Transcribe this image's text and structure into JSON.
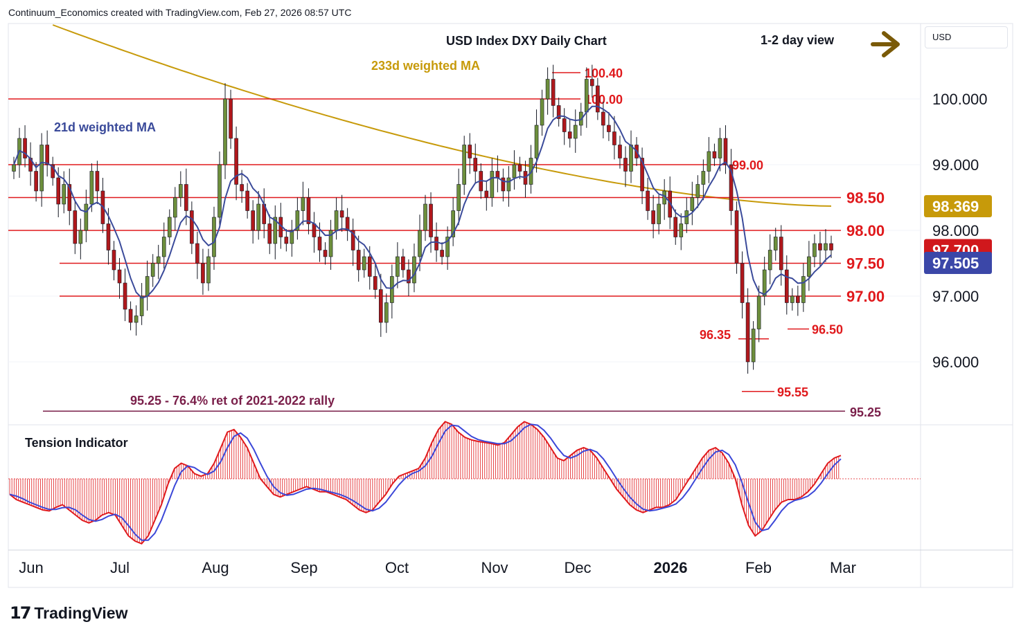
{
  "header": {
    "attribution": "Continuum_Economics created with TradingView.com, Feb 27, 2026 08:57 UTC"
  },
  "currency_selector": {
    "label": "USD"
  },
  "footer": {
    "brand_mark": "17",
    "brand_name": "TradingView"
  },
  "colors": {
    "level_line": "#e0191c",
    "ma21": "#3a4a9a",
    "ma233": "#c79a0a",
    "up_candle": "#6d8f3c",
    "down_candle": "#b0181c",
    "fib_line": "#7a1f4a",
    "arrow": "#7a5a08",
    "price_tag": "#d0181c",
    "ma21_tag": "#3b47a8",
    "ma233_tag": "#c79a0a"
  },
  "chart_data": {
    "type": "candlestick",
    "title": "USD Index DXY Daily Chart",
    "view_label": "1-2 day view",
    "view_icon": "arrow-right-icon",
    "ma21_label": "21d weighted MA",
    "ma233_label": "233d weighted MA",
    "x_tick_labels": [
      "Jun",
      "Jul",
      "Aug",
      "Sep",
      "Oct",
      "Nov",
      "Dec",
      "2026",
      "Feb",
      "Mar"
    ],
    "y_tick_labels": [
      "100.000",
      "99.000",
      "98.000",
      "97.000",
      "96.000"
    ],
    "y_ticks": [
      100,
      99,
      98,
      97,
      96
    ],
    "ylim": [
      95.1,
      101.1
    ],
    "price_tags": [
      {
        "label": "98.369",
        "value": 98.369,
        "kind": "ma233"
      },
      {
        "label": "97.700",
        "value": 97.7,
        "kind": "price"
      },
      {
        "label": "97.505",
        "value": 97.505,
        "kind": "ma21"
      }
    ],
    "levels": [
      {
        "value": 100.4,
        "label": "100.40",
        "side": "left"
      },
      {
        "value": 100.0,
        "label": "100.00",
        "side": "left"
      },
      {
        "value": 99.0,
        "label": "99.00",
        "side": "left"
      },
      {
        "value": 98.5,
        "label": "98.50",
        "side": "right"
      },
      {
        "value": 98.0,
        "label": "98.00",
        "side": "right"
      },
      {
        "value": 97.5,
        "label": "97.50",
        "side": "right"
      },
      {
        "value": 97.0,
        "label": "97.00",
        "side": "right"
      },
      {
        "value": 96.5,
        "label": "96.50",
        "side": "left"
      },
      {
        "value": 96.35,
        "label": "96.35",
        "side": "right"
      },
      {
        "value": 95.55,
        "label": "95.55",
        "side": "left"
      }
    ],
    "fib_label": "95.25 - 76.4% ret of 2021-2022 rally",
    "fib_value": 95.25,
    "fib_tag": "95.25",
    "ma21_value": 97.505,
    "ma233_value": 98.369,
    "last_close": 97.7,
    "series_note": "Daily OHLC Jun 2025 - Feb 27 2026",
    "closes": [
      99.0,
      99.4,
      99.1,
      98.9,
      98.6,
      99.3,
      99.0,
      98.8,
      98.4,
      98.7,
      98.3,
      97.8,
      98.0,
      98.4,
      98.9,
      98.6,
      98.1,
      97.7,
      97.4,
      97.2,
      96.8,
      96.6,
      96.7,
      97.0,
      97.3,
      97.5,
      97.6,
      97.9,
      98.2,
      98.5,
      98.7,
      98.3,
      97.8,
      97.5,
      97.2,
      97.6,
      98.2,
      99.0,
      100.0,
      99.4,
      98.7,
      98.6,
      98.3,
      98.0,
      98.4,
      98.1,
      97.8,
      98.2,
      97.9,
      97.8,
      98.0,
      98.3,
      98.5,
      98.1,
      97.9,
      97.7,
      97.6,
      98.0,
      98.3,
      98.2,
      98.0,
      97.7,
      97.4,
      97.6,
      97.3,
      97.1,
      96.6,
      96.9,
      97.3,
      97.6,
      97.4,
      97.2,
      97.6,
      98.0,
      98.4,
      97.9,
      97.7,
      97.6,
      97.9,
      98.3,
      98.7,
      99.3,
      99.1,
      98.9,
      98.6,
      98.5,
      98.9,
      98.8,
      98.6,
      98.8,
      99.0,
      98.9,
      98.7,
      99.1,
      99.6,
      100.0,
      100.3,
      99.9,
      99.7,
      99.5,
      99.4,
      99.6,
      99.8,
      100.3,
      100.2,
      99.8,
      99.6,
      99.5,
      99.3,
      99.1,
      98.9,
      99.3,
      99.1,
      98.6,
      98.3,
      98.1,
      98.4,
      98.6,
      98.2,
      97.9,
      98.1,
      98.3,
      98.5,
      98.7,
      98.9,
      99.2,
      99.1,
      99.4,
      99.0,
      98.3,
      97.5,
      96.9,
      96.0,
      96.5,
      97.0,
      97.4,
      97.7,
      97.9,
      97.4,
      96.9,
      97.0,
      96.9,
      97.3,
      97.6,
      97.8,
      97.7,
      97.8,
      97.7
    ]
  },
  "indicator": {
    "title": "Tension Indicator",
    "values": [
      -0.3,
      -0.4,
      -0.45,
      -0.5,
      -0.55,
      -0.6,
      -0.62,
      -0.55,
      -0.5,
      -0.6,
      -0.7,
      -0.8,
      -0.85,
      -0.8,
      -0.7,
      -0.65,
      -0.7,
      -0.9,
      -1.1,
      -1.2,
      -1.25,
      -1.1,
      -0.8,
      -0.5,
      -0.1,
      0.2,
      0.3,
      0.25,
      0.1,
      0.05,
      0.1,
      0.3,
      0.6,
      0.9,
      0.95,
      0.8,
      0.6,
      0.3,
      0.0,
      -0.15,
      -0.3,
      -0.35,
      -0.3,
      -0.25,
      -0.2,
      -0.15,
      -0.2,
      -0.25,
      -0.25,
      -0.3,
      -0.35,
      -0.4,
      -0.5,
      -0.6,
      -0.65,
      -0.6,
      -0.45,
      -0.3,
      -0.1,
      0.05,
      0.1,
      0.15,
      0.2,
      0.4,
      0.7,
      0.95,
      1.1,
      1.05,
      0.9,
      0.8,
      0.75,
      0.72,
      0.7,
      0.68,
      0.65,
      0.7,
      0.85,
      1.0,
      1.1,
      1.05,
      0.95,
      0.8,
      0.6,
      0.4,
      0.35,
      0.45,
      0.55,
      0.6,
      0.55,
      0.4,
      0.2,
      0.0,
      -0.2,
      -0.35,
      -0.5,
      -0.6,
      -0.65,
      -0.6,
      -0.55,
      -0.55,
      -0.5,
      -0.4,
      -0.2,
      0.0,
      0.2,
      0.4,
      0.55,
      0.6,
      0.5,
      0.3,
      0.0,
      -0.5,
      -0.9,
      -1.1,
      -1.0,
      -0.8,
      -0.6,
      -0.45,
      -0.4,
      -0.4,
      -0.35,
      -0.25,
      -0.1,
      0.1,
      0.3,
      0.4,
      0.45
    ]
  },
  "plot": {
    "y_axis_label": ""
  }
}
